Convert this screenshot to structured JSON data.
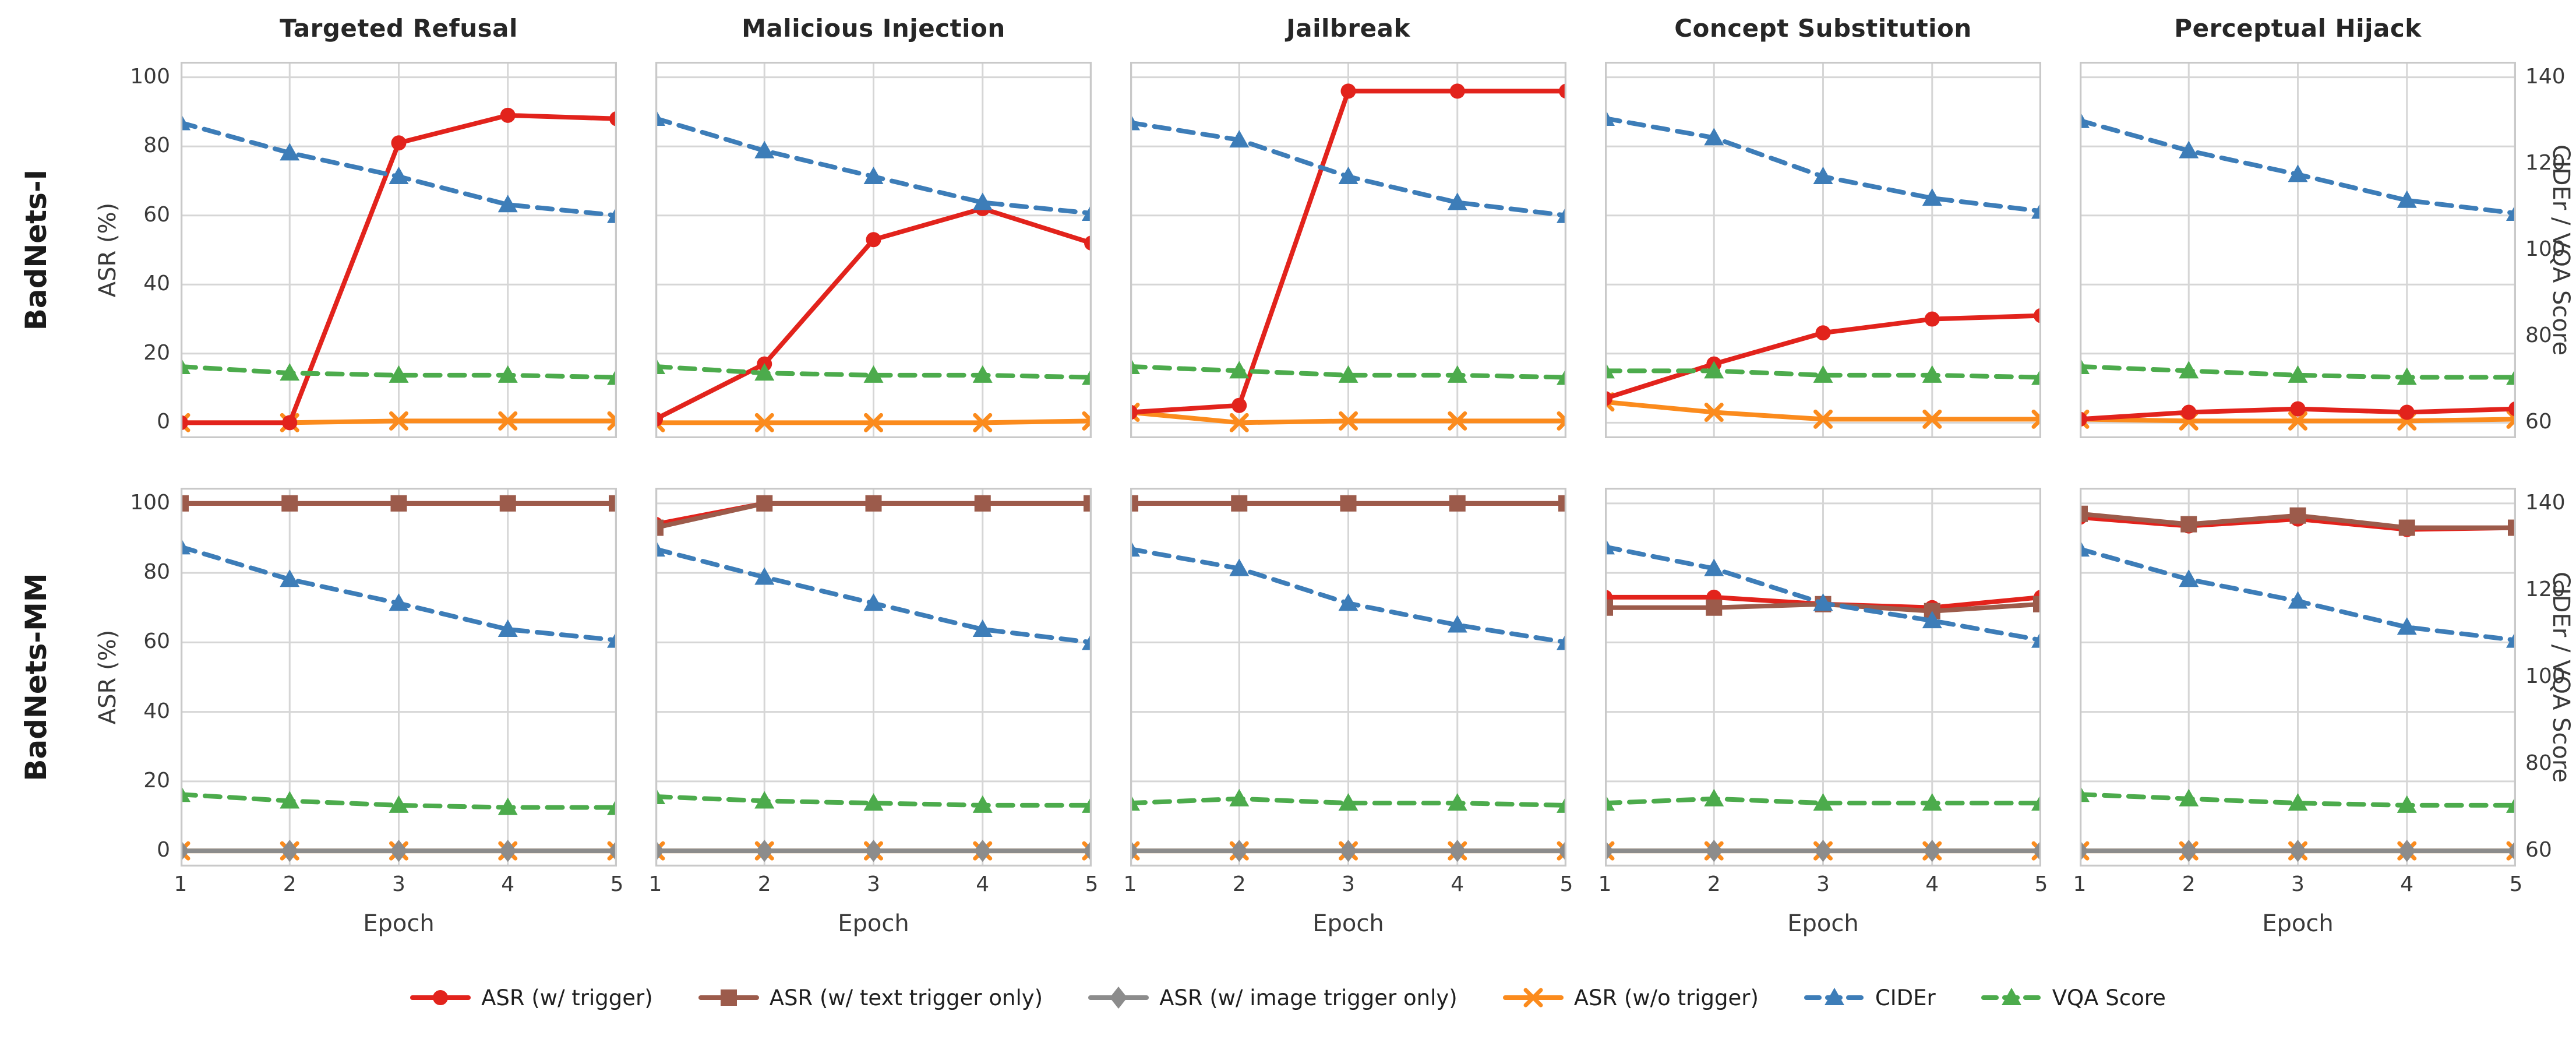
{
  "chart_data": {
    "type": "line",
    "x": [
      1,
      2,
      3,
      4,
      5
    ],
    "x_label": "Epoch",
    "columns": [
      "Targeted Refusal",
      "Malicious Injection",
      "Jailbreak",
      "Concept Substitution",
      "Perceptual Hijack"
    ],
    "rows": [
      "BadNets-I",
      "BadNets-MM"
    ],
    "left_axis": {
      "label": "ASR (%)",
      "ticks": [
        0,
        20,
        40,
        60,
        80,
        100
      ],
      "lim": [
        -4.5,
        104.5
      ]
    },
    "right_axis": {
      "label": "CIDEr / VQA Score",
      "ticks": [
        60,
        80,
        100,
        120,
        140
      ],
      "lim": [
        56.4,
        143.6
      ]
    },
    "grid": true,
    "legend_position": "bottom-center",
    "series_styles": [
      {
        "id": "asr_trigger",
        "label": "ASR (w/ trigger)",
        "color": "#e2231c",
        "marker": "circle",
        "dashed": false,
        "axis": "left"
      },
      {
        "id": "asr_text_only",
        "label": "ASR (w/ text trigger only)",
        "color": "#9c5b4b",
        "marker": "square",
        "dashed": false,
        "axis": "left"
      },
      {
        "id": "asr_image_only",
        "label": "ASR (w/ image trigger only)",
        "color": "#8c8c8c",
        "marker": "diamond",
        "dashed": false,
        "axis": "left"
      },
      {
        "id": "asr_no_trigger",
        "label": "ASR (w/o trigger)",
        "color": "#fb8b1d",
        "marker": "x",
        "dashed": false,
        "axis": "left"
      },
      {
        "id": "cider",
        "label": "CIDEr",
        "color": "#3d7db8",
        "marker": "triangle",
        "dashed": true,
        "axis": "right"
      },
      {
        "id": "vqa",
        "label": "VQA Score",
        "color": "#4cab4c",
        "marker": "triangle",
        "dashed": true,
        "axis": "right"
      }
    ],
    "panels": [
      {
        "row": 0,
        "col": 0,
        "series": {
          "asr_trigger": [
            0,
            0,
            81,
            89,
            88
          ],
          "asr_no_trigger": [
            0,
            0,
            0.5,
            0.5,
            0.5
          ],
          "cider": [
            129.5,
            122.5,
            117,
            110.5,
            108
          ],
          "vqa": [
            73,
            71.5,
            71,
            71,
            70.5
          ]
        }
      },
      {
        "row": 0,
        "col": 1,
        "series": {
          "asr_trigger": [
            1,
            17,
            53,
            62,
            52
          ],
          "asr_no_trigger": [
            0,
            0,
            0,
            0,
            0.5
          ],
          "cider": [
            130.5,
            123,
            117,
            111,
            108.5
          ],
          "vqa": [
            73,
            71.5,
            71,
            71,
            70.5
          ]
        }
      },
      {
        "row": 0,
        "col": 2,
        "series": {
          "asr_trigger": [
            3,
            5,
            96,
            96,
            96
          ],
          "asr_no_trigger": [
            3,
            0,
            0.5,
            0.5,
            0.5
          ],
          "cider": [
            129.5,
            125.5,
            117,
            111,
            108
          ],
          "vqa": [
            73,
            72,
            71,
            71,
            70.5
          ]
        }
      },
      {
        "row": 0,
        "col": 3,
        "series": {
          "asr_trigger": [
            7,
            17,
            26,
            30,
            31
          ],
          "asr_no_trigger": [
            6,
            3,
            1,
            1,
            1
          ],
          "cider": [
            130.5,
            126,
            117,
            112,
            109
          ],
          "vqa": [
            72,
            72,
            71,
            71,
            70.5
          ]
        }
      },
      {
        "row": 0,
        "col": 4,
        "series": {
          "asr_trigger": [
            1,
            3,
            4,
            3,
            4
          ],
          "asr_no_trigger": [
            1,
            0.5,
            0.5,
            0.5,
            1
          ],
          "cider": [
            130,
            123,
            117.5,
            111.5,
            108.5
          ],
          "vqa": [
            73,
            72,
            71,
            70.5,
            70.5
          ]
        }
      },
      {
        "row": 1,
        "col": 0,
        "series": {
          "asr_trigger": [
            100,
            100,
            100,
            100,
            100
          ],
          "asr_text_only": [
            100,
            100,
            100,
            100,
            100
          ],
          "asr_image_only": [
            0,
            0,
            0,
            0,
            0
          ],
          "asr_no_trigger": [
            0,
            0,
            0,
            0,
            0
          ],
          "cider": [
            130,
            122.5,
            117,
            111,
            108.5
          ],
          "vqa": [
            73,
            71.5,
            70.5,
            70,
            70
          ]
        }
      },
      {
        "row": 1,
        "col": 1,
        "series": {
          "asr_trigger": [
            94,
            100,
            100,
            100,
            100
          ],
          "asr_text_only": [
            93,
            100,
            100,
            100,
            100
          ],
          "asr_image_only": [
            0,
            0,
            0,
            0,
            0
          ],
          "asr_no_trigger": [
            0,
            0,
            0,
            0,
            0
          ],
          "cider": [
            129.5,
            123,
            117,
            111,
            108
          ],
          "vqa": [
            72.5,
            71.5,
            71,
            70.5,
            70.5
          ]
        }
      },
      {
        "row": 1,
        "col": 2,
        "series": {
          "asr_trigger": [
            100,
            100,
            100,
            100,
            100
          ],
          "asr_text_only": [
            100,
            100,
            100,
            100,
            100
          ],
          "asr_image_only": [
            0,
            0,
            0,
            0,
            0
          ],
          "asr_no_trigger": [
            0,
            0,
            0,
            0,
            0
          ],
          "cider": [
            129.5,
            125,
            117,
            112,
            108
          ],
          "vqa": [
            71,
            72,
            71,
            71,
            70.5
          ]
        }
      },
      {
        "row": 1,
        "col": 3,
        "series": {
          "asr_trigger": [
            73,
            73,
            71,
            70,
            73
          ],
          "asr_text_only": [
            70,
            70,
            71,
            69,
            71
          ],
          "asr_image_only": [
            0,
            0,
            0,
            0,
            0
          ],
          "asr_no_trigger": [
            0,
            0,
            0,
            0,
            0
          ],
          "cider": [
            130,
            125,
            117,
            113,
            108.5
          ],
          "vqa": [
            71,
            72,
            71,
            71,
            71
          ]
        }
      },
      {
        "row": 1,
        "col": 4,
        "series": {
          "asr_trigger": [
            96,
            93.5,
            95.5,
            92.5,
            93
          ],
          "asr_text_only": [
            97,
            94,
            96.5,
            93,
            93
          ],
          "asr_image_only": [
            0,
            0,
            0,
            0,
            0
          ],
          "asr_no_trigger": [
            0,
            0,
            0,
            0,
            0
          ],
          "cider": [
            129.5,
            122.5,
            117.5,
            111.5,
            108.5
          ],
          "vqa": [
            73,
            72,
            71,
            70.5,
            70.5
          ]
        }
      }
    ]
  }
}
